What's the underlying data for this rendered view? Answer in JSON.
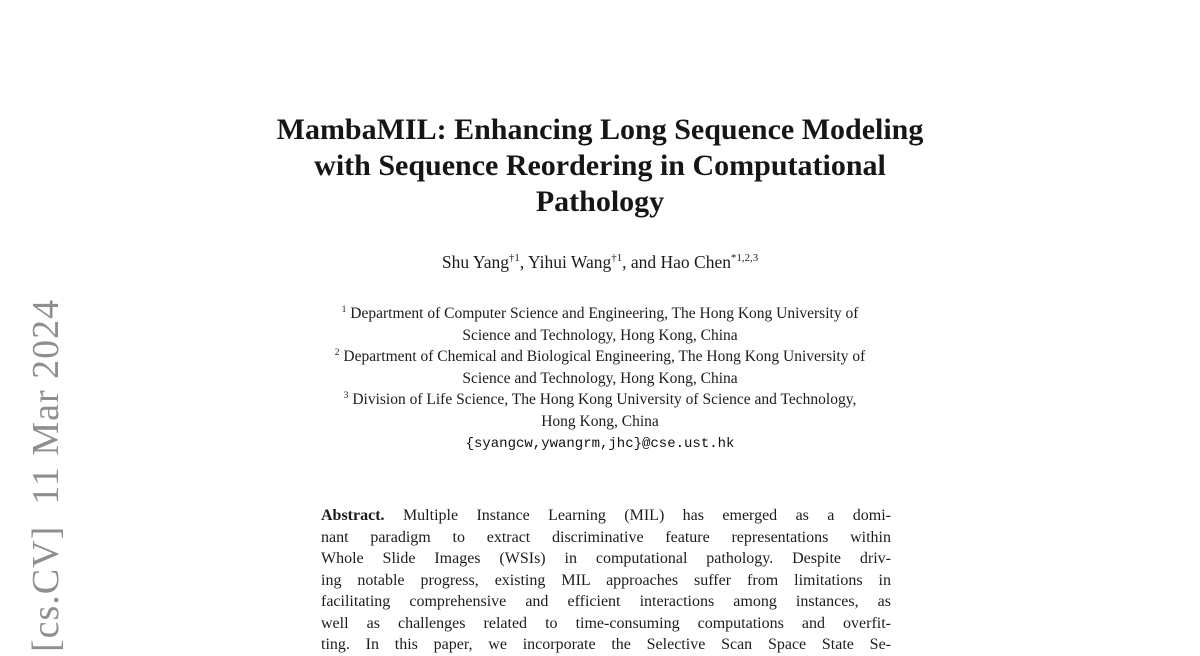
{
  "watermark": {
    "text": "[cs.CV]  11 Mar 2024",
    "color": "#8f8f8f"
  },
  "title": {
    "lines": [
      "MambaMIL: Enhancing Long Sequence Modeling",
      "with Sequence Reordering in Computational",
      "Pathology"
    ]
  },
  "authors": {
    "list": [
      {
        "name": "Shu Yang",
        "sup": "†1",
        "sep": ", "
      },
      {
        "name": "Yihui Wang",
        "sup": "†1",
        "sep": ", and "
      },
      {
        "name": "Hao Chen",
        "sup": "*1,2,3",
        "sep": ""
      }
    ]
  },
  "affiliations": [
    {
      "sup": "1",
      "line1": "Department of Computer Science and Engineering, The Hong Kong University of",
      "line2": "Science and Technology, Hong Kong, China"
    },
    {
      "sup": "2",
      "line1": "Department of Chemical and Biological Engineering, The Hong Kong University of",
      "line2": "Science and Technology, Hong Kong, China"
    },
    {
      "sup": "3",
      "line1": "Division of Life Science, The Hong Kong University of Science and Technology,",
      "line2": "Hong Kong, China"
    }
  ],
  "contact": {
    "email": "{syangcw,ywangrm,jhc}@cse.ust.hk"
  },
  "abstract": {
    "label": "Abstract.",
    "lines": [
      "Multiple Instance Learning (MIL) has emerged as a domi-",
      "nant paradigm to extract discriminative feature representations within",
      "Whole Slide Images (WSIs) in computational pathology. Despite driv-",
      "ing notable progress, existing MIL approaches suffer from limitations in",
      "facilitating comprehensive and efficient interactions among instances, as",
      "well as challenges related to time-consuming computations and overfit-",
      "ting. In this paper, we incorporate the Selective Scan Space State Se-"
    ]
  }
}
